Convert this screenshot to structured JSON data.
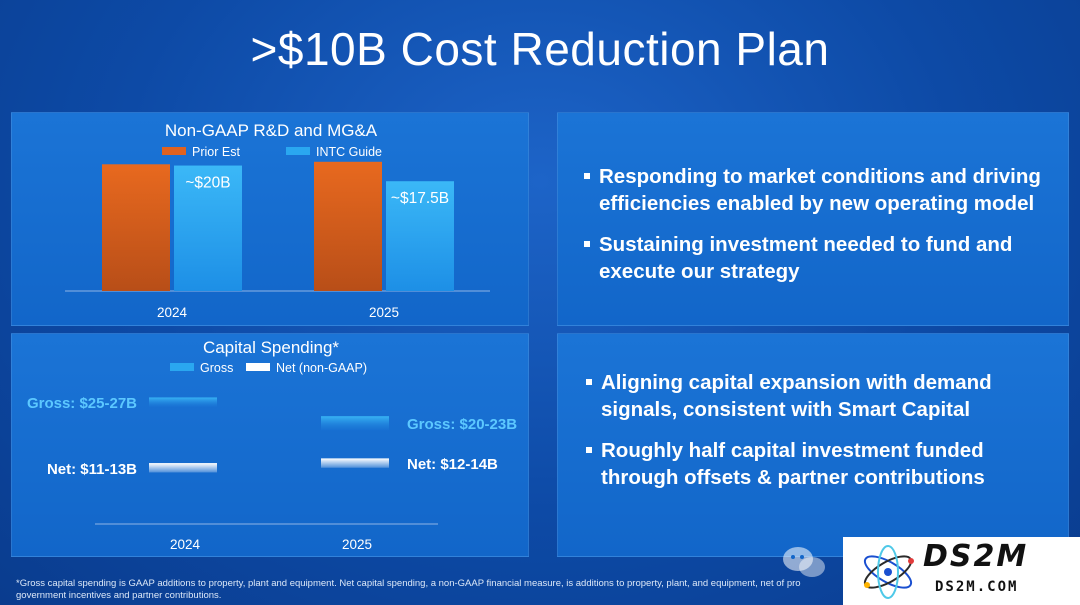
{
  "page": {
    "title": ">$10B Cost Reduction Plan",
    "footnote": "*Gross capital spending is GAAP additions to property, plant and equipment. Net capital spending, a non-GAAP financial measure, is additions to property, plant, and equipment, net of pro government incentives and partner contributions."
  },
  "colors": {
    "prior_est": "#e0621f",
    "intc_guide": "#2aa7f0",
    "gross": "#2aa7f0",
    "net": "#ffffff",
    "panel": "#1569cf",
    "background": "#0d4aa6"
  },
  "chart_data": [
    {
      "type": "bar",
      "title": "Non-GAAP R&D and MG&A",
      "categories": [
        "2024",
        "2025"
      ],
      "legend_position": "top-center",
      "series": [
        {
          "name": "Prior Est",
          "values": [
            20.2,
            20.6
          ],
          "labels": [
            "",
            ""
          ]
        },
        {
          "name": "INTC Guide",
          "values": [
            20,
            17.5
          ],
          "labels": [
            "~$20B",
            "~$17.5B"
          ]
        }
      ],
      "ylim": [
        0,
        22
      ]
    },
    {
      "type": "bar",
      "title": "Capital Spending*",
      "categories": [
        "2024",
        "2025"
      ],
      "legend_position": "top-center",
      "series": [
        {
          "name": "Gross",
          "ranges": [
            [
              25,
              27
            ],
            [
              20,
              23
            ]
          ],
          "labels": [
            "Gross: $25-27B",
            "Gross: $20-23B"
          ]
        },
        {
          "name": "Net (non-GAAP)",
          "ranges": [
            [
              11,
              13
            ],
            [
              12,
              14
            ]
          ],
          "labels": [
            "Net: $11-13B",
            "Net: $12-14B"
          ]
        }
      ],
      "ylim": [
        0,
        32
      ]
    }
  ],
  "bullets_top": [
    "Responding to market conditions and driving efficiencies enabled by new operating model",
    "Sustaining investment needed to fund and execute our strategy"
  ],
  "bullets_bottom": [
    "Aligning capital expansion with demand signals, consistent with Smart Capital",
    "Roughly half capital investment funded through offsets & partner contributions"
  ],
  "watermark": {
    "logo_text": "DS2M",
    "logo_sub": "DS2M.COM",
    "icons": [
      "wechat-icon",
      "atom-logo-icon"
    ]
  }
}
